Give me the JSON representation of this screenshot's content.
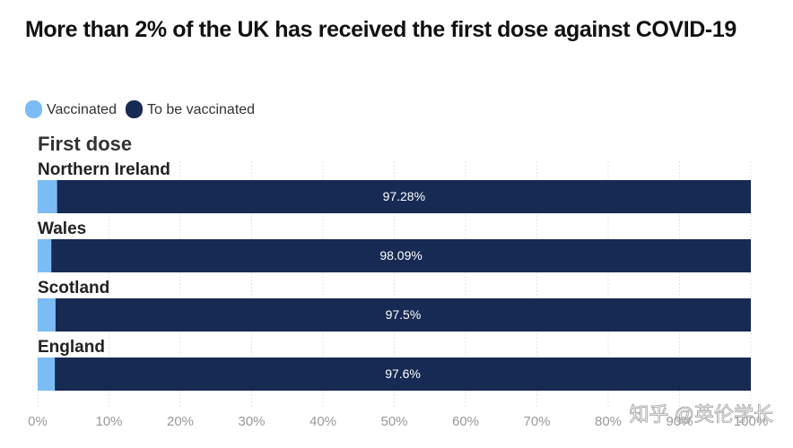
{
  "chart_data": {
    "type": "bar",
    "orientation": "horizontal",
    "stacked": true,
    "title": "More than 2% of the UK has received the first dose against COVID-19",
    "subtitle": "First dose",
    "categories": [
      "Northern Ireland",
      "Wales",
      "Scotland",
      "England"
    ],
    "series": [
      {
        "name": "Vaccinated",
        "color": "#7cbcf5",
        "values": [
          2.72,
          1.91,
          2.5,
          2.4
        ]
      },
      {
        "name": "To be vaccinated",
        "color": "#172a54",
        "values": [
          97.28,
          98.09,
          97.5,
          97.6
        ],
        "value_labels": [
          "97.28%",
          "98.09%",
          "97.5%",
          "97.6%"
        ]
      }
    ],
    "xlim": [
      0,
      100
    ],
    "xticks": [
      {
        "value": 0,
        "label": "0%"
      },
      {
        "value": 10,
        "label": "10%"
      },
      {
        "value": 20,
        "label": "20%"
      },
      {
        "value": 30,
        "label": "30%"
      },
      {
        "value": 40,
        "label": "40%"
      },
      {
        "value": 50,
        "label": "50%"
      },
      {
        "value": 60,
        "label": "60%"
      },
      {
        "value": 70,
        "label": "70%"
      },
      {
        "value": 80,
        "label": "80%"
      },
      {
        "value": 90,
        "label": "90%"
      },
      {
        "value": 100,
        "label": "100%"
      }
    ],
    "grid": true,
    "watermark": "知乎 @英伦学长"
  }
}
